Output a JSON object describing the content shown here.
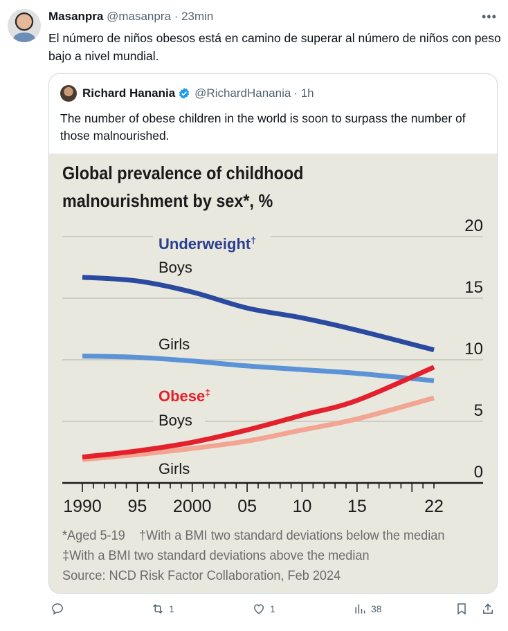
{
  "tweet": {
    "author_name": "Masanpra",
    "author_handle": "@masanpra",
    "time": "· 23min",
    "text": "El número de niños obesos está en camino de superar al número de niños con peso bajo a nivel mundial.",
    "more_icon": "more-horizontal-icon"
  },
  "quoted": {
    "author_name": "Richard Hanania",
    "author_handle": "@RichardHanania",
    "time": "· 1h",
    "verified": true,
    "text": "The number of obese children in the world is soon to surpass the number of those malnourished."
  },
  "actions": {
    "reply": {
      "icon": "reply-icon",
      "count": ""
    },
    "retweet": {
      "icon": "retweet-icon",
      "count": "1"
    },
    "like": {
      "icon": "heart-icon",
      "count": "1"
    },
    "views": {
      "icon": "views-icon",
      "count": "38"
    },
    "bookmark": {
      "icon": "bookmark-icon"
    },
    "share": {
      "icon": "share-icon"
    }
  },
  "chart_data": {
    "type": "line",
    "title": "Global prevalence of childhood malnourishment by sex*, %",
    "xlabel": "",
    "ylabel": "%",
    "ylim": [
      0,
      20
    ],
    "yticks": [
      0,
      5,
      10,
      15,
      20
    ],
    "xlim": [
      1990,
      2022
    ],
    "xtick_labels": [
      {
        "year": 1990,
        "label": "1990"
      },
      {
        "year": 1995,
        "label": "95"
      },
      {
        "year": 2000,
        "label": "2000"
      },
      {
        "year": 2005,
        "label": "05"
      },
      {
        "year": 2010,
        "label": "10"
      },
      {
        "year": 2015,
        "label": "15"
      },
      {
        "year": 2022,
        "label": "22"
      }
    ],
    "grid": true,
    "x": [
      1990,
      1995,
      2000,
      2005,
      2010,
      2015,
      2022
    ],
    "groups": [
      {
        "label": "Underweight",
        "marker": "†",
        "color": "#2b3f8e"
      },
      {
        "label": "Obese",
        "marker": "‡",
        "color": "#e3202b"
      }
    ],
    "series": [
      {
        "name": "Underweight Boys",
        "label": "Boys",
        "color": "#2a4aa0",
        "values": [
          16.7,
          16.4,
          15.5,
          14.2,
          13.4,
          12.4,
          10.8
        ]
      },
      {
        "name": "Underweight Girls",
        "label": "Girls",
        "color": "#5b93d6",
        "values": [
          10.3,
          10.2,
          9.9,
          9.5,
          9.2,
          8.9,
          8.3
        ]
      },
      {
        "name": "Obese Boys",
        "label": "Boys",
        "color": "#e3202b",
        "values": [
          2.1,
          2.6,
          3.3,
          4.3,
          5.5,
          6.7,
          9.4
        ]
      },
      {
        "name": "Obese Girls",
        "label": "Girls",
        "color": "#f2a592",
        "values": [
          1.9,
          2.3,
          2.8,
          3.4,
          4.3,
          5.2,
          6.9
        ]
      }
    ],
    "footnotes": [
      "*Aged 5-19",
      "†With a BMI two standard deviations below the median",
      "‡With a BMI two standard deviations above the median",
      "Source: NCD Risk Factor Collaboration, Feb 2024"
    ]
  }
}
